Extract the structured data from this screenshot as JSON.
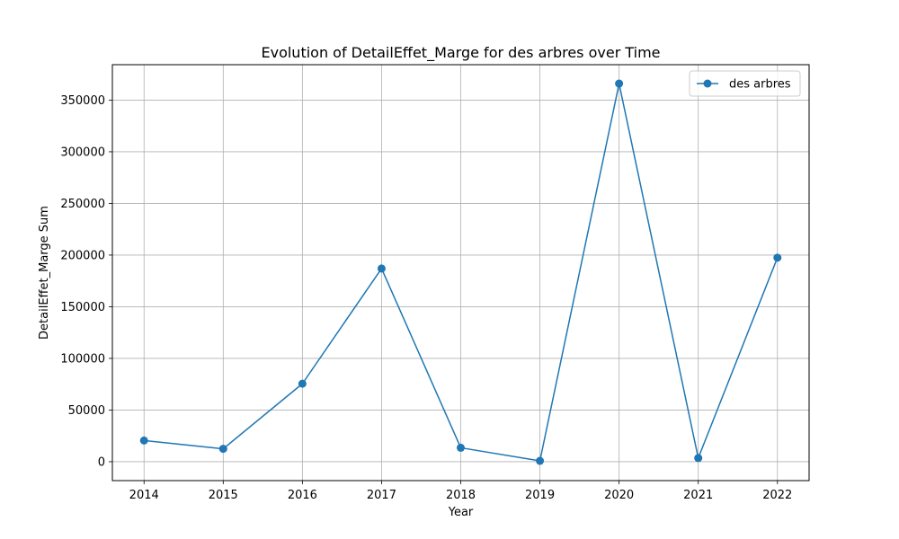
{
  "chart_data": {
    "type": "line",
    "title": "Evolution of DetailEffet_Marge for des arbres over Time",
    "xlabel": "Year",
    "ylabel": "DetailEffet_Marge Sum",
    "x": [
      2014,
      2015,
      2016,
      2017,
      2018,
      2019,
      2020,
      2021,
      2022
    ],
    "series": [
      {
        "name": "des arbres",
        "values": [
          20500,
          12500,
          75500,
          187000,
          13500,
          800,
          366000,
          3500,
          197500
        ],
        "color": "#1f77b4",
        "marker": "circle"
      }
    ],
    "xlim": [
      2013.6,
      2022.4
    ],
    "ylim": [
      -18300,
      384300
    ],
    "x_ticks": [
      2014,
      2015,
      2016,
      2017,
      2018,
      2019,
      2020,
      2021,
      2022
    ],
    "y_ticks": [
      0,
      50000,
      100000,
      150000,
      200000,
      250000,
      300000,
      350000
    ],
    "grid": true,
    "legend_position": "top-right"
  }
}
